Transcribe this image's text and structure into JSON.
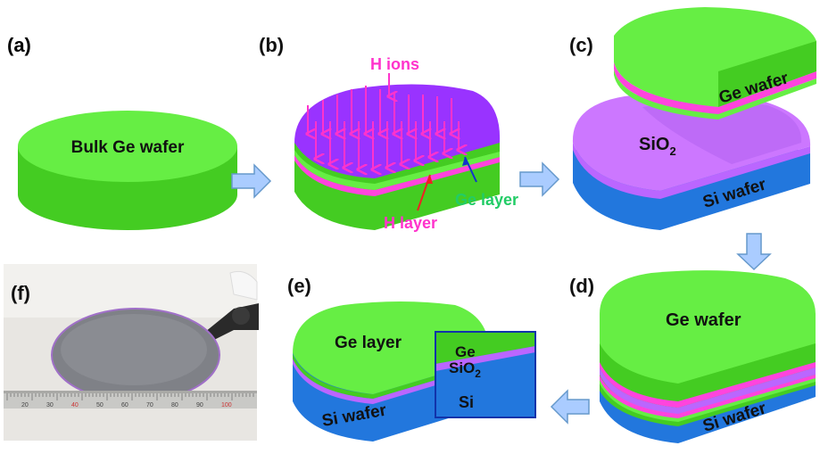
{
  "panels": {
    "a": {
      "label": "(a)",
      "wafer_label": "Bulk Ge wafer"
    },
    "b": {
      "label": "(b)",
      "h_ions": "H ions",
      "ge_layer": "Ge layer",
      "h_layer": "H layer"
    },
    "c": {
      "label": "(c)",
      "ge_wafer": "Ge wafer",
      "sio2_main": "SiO",
      "sio2_sub": "2",
      "si_wafer": "Si wafer"
    },
    "d": {
      "label": "(d)",
      "ge_wafer": "Ge wafer",
      "si_wafer": "Si wafer"
    },
    "e": {
      "label": "(e)",
      "ge_layer": "Ge layer",
      "si_wafer": "Si wafer",
      "inset_ge": "Ge",
      "inset_sio2_main": "SiO",
      "inset_sio2_sub": "2",
      "inset_si": "Si"
    },
    "f": {
      "label": "(f)",
      "ruler_marks": [
        "20",
        "30",
        "40",
        "50",
        "60",
        "70",
        "80",
        "90",
        "100"
      ]
    }
  },
  "colors": {
    "ge_top": "#66ee44",
    "ge_side": "#44cc22",
    "si_top": "#3399ee",
    "si_side": "#2277dd",
    "sio2": "#bb66ff",
    "purple_top": "#9933ff",
    "h_layer": "#ff44dd",
    "h_label": "#ff33cc",
    "ge_label": "#22cc66",
    "arrow_fill": "#aaccff",
    "arrow_stroke": "#6699cc",
    "blue_arrow": "#1133cc",
    "red_arrow": "#ee2222"
  }
}
